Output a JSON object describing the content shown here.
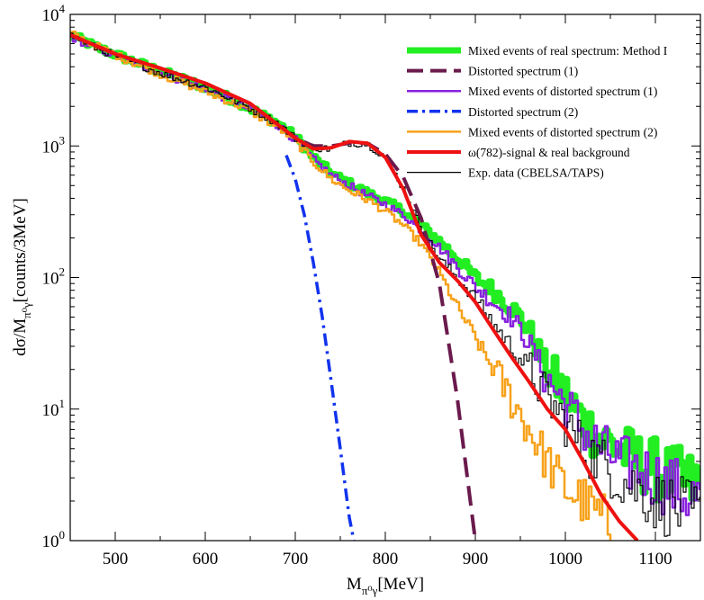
{
  "chart_data": {
    "type": "line",
    "xlabel": {
      "main": "M",
      "sub": "π⁰γ",
      "unit": "[MeV]"
    },
    "ylabel": {
      "main": "dσ/M",
      "sub": "π⁰γ",
      "unit": "[counts/3MeV]"
    },
    "xlim": [
      450,
      1150
    ],
    "ylim": [
      1,
      10000
    ],
    "yscale": "log",
    "x_ticks": [
      500,
      600,
      700,
      800,
      900,
      1000,
      1100
    ],
    "x_tick_labels": [
      "500",
      "600",
      "700",
      "800",
      "900",
      "1000",
      "1100"
    ],
    "y_ticks": [
      1,
      10,
      100,
      1000,
      10000
    ],
    "y_tick_labels": [
      {
        "base": "10",
        "exp": "0"
      },
      {
        "base": "10",
        "exp": "1"
      },
      {
        "base": "10",
        "exp": "2"
      },
      {
        "base": "10",
        "exp": "3"
      },
      {
        "base": "10",
        "exp": "4"
      }
    ],
    "legend_position": "top-right",
    "series": [
      {
        "name": "Mixed events of real spectrum: Method I",
        "color": "#22ee22",
        "style": "step",
        "width": 7,
        "x": [
          450,
          480,
          520,
          560,
          600,
          640,
          680,
          700,
          720,
          740,
          760,
          780,
          800,
          820,
          840,
          860,
          880,
          900,
          920,
          940,
          960,
          980,
          1000,
          1020,
          1040,
          1060,
          1080,
          1100,
          1120,
          1150
        ],
        "y": [
          7000,
          5600,
          4400,
          3500,
          2800,
          2100,
          1500,
          1180,
          820,
          620,
          520,
          440,
          380,
          320,
          250,
          190,
          140,
          100,
          80,
          60,
          40,
          20,
          13,
          8,
          6,
          5,
          4,
          3.5,
          3,
          2.5
        ]
      },
      {
        "name": "Distorted spectrum (1)",
        "color": "#6a1a4c",
        "style": "dashed",
        "width": 4,
        "x": [
          450,
          500,
          550,
          600,
          650,
          700,
          720,
          740,
          760,
          780,
          800,
          820,
          840,
          860,
          880,
          900
        ],
        "y": [
          7000,
          5000,
          3900,
          3000,
          2100,
          1150,
          1000,
          1000,
          1050,
          1050,
          870,
          580,
          280,
          90,
          12,
          1
        ]
      },
      {
        "name": "Mixed events of distorted  spectrum (1)",
        "color": "#8822dd",
        "style": "step",
        "width": 2.5,
        "x": [
          450,
          480,
          520,
          560,
          600,
          640,
          680,
          700,
          720,
          740,
          760,
          780,
          800,
          820,
          840,
          860,
          880,
          900,
          920,
          940,
          960,
          980,
          1000,
          1020,
          1040,
          1060,
          1080,
          1100,
          1120,
          1150
        ],
        "y": [
          6800,
          5500,
          4300,
          3400,
          2700,
          2050,
          1450,
          1120,
          790,
          600,
          500,
          420,
          360,
          300,
          230,
          170,
          120,
          85,
          65,
          50,
          32,
          17,
          11,
          7,
          5,
          4,
          3.5,
          3,
          2.5,
          2
        ]
      },
      {
        "name": "Distorted spectrum (2)",
        "color": "#1133ee",
        "style": "dashdot",
        "width": 3.5,
        "x": [
          690,
          700,
          710,
          720,
          730,
          740,
          750,
          760,
          765
        ],
        "y": [
          850,
          560,
          300,
          130,
          50,
          16,
          5,
          1.5,
          1
        ]
      },
      {
        "name": "Mixed events of distorted spectrum (2)",
        "color": "#f7a21b",
        "style": "step",
        "width": 2.5,
        "x": [
          450,
          480,
          520,
          560,
          600,
          640,
          680,
          700,
          720,
          740,
          760,
          780,
          800,
          820,
          840,
          860,
          880,
          900,
          920,
          940,
          960,
          980,
          1000,
          1020,
          1040,
          1060
        ],
        "y": [
          7200,
          5700,
          4300,
          3300,
          2600,
          2000,
          1400,
          1100,
          760,
          560,
          460,
          390,
          320,
          250,
          180,
          110,
          60,
          35,
          20,
          12,
          7,
          4,
          2.5,
          2,
          1.5,
          1
        ]
      },
      {
        "name": "ω(782)-signal & real background",
        "color": "#ee1111",
        "style": "solid",
        "width": 4,
        "x": [
          450,
          500,
          550,
          600,
          650,
          700,
          720,
          740,
          760,
          780,
          800,
          820,
          840,
          860,
          880,
          900,
          920,
          940,
          960,
          980,
          1000,
          1020,
          1040,
          1060,
          1080
        ],
        "y": [
          7000,
          5000,
          3900,
          3000,
          2100,
          1150,
          950,
          970,
          1080,
          1050,
          820,
          470,
          210,
          130,
          95,
          65,
          40,
          25,
          16,
          10,
          7,
          4,
          2.2,
          1.4,
          1
        ]
      },
      {
        "name": "Exp. data (CBELSA/TAPS)",
        "color": "#000000",
        "style": "step",
        "width": 1.2,
        "x": [
          450,
          480,
          520,
          560,
          600,
          640,
          680,
          700,
          720,
          740,
          760,
          780,
          800,
          820,
          840,
          860,
          880,
          900,
          920,
          940,
          960,
          980,
          1000,
          1020,
          1040,
          1060,
          1080,
          1100,
          1120,
          1150
        ],
        "y": [
          7000,
          5500,
          4300,
          3400,
          2800,
          2100,
          1500,
          1150,
          970,
          950,
          1060,
          1040,
          830,
          480,
          240,
          140,
          100,
          70,
          45,
          30,
          20,
          12,
          8,
          5,
          4,
          3,
          2.5,
          2,
          1.8,
          1.5
        ]
      }
    ]
  }
}
